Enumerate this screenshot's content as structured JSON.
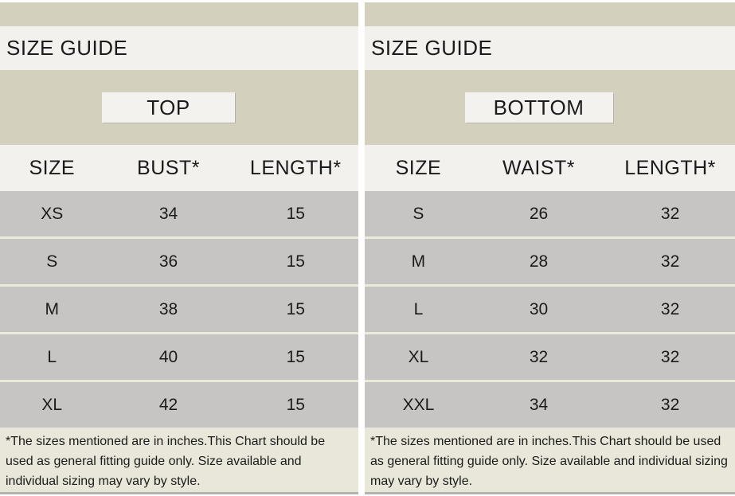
{
  "colors": {
    "band_khaki": "#d3d0bd",
    "light_row": "#f2f1ee",
    "data_row_gray": "#c6c5c3",
    "row_separator": "#eceadb",
    "footnote_bg": "#e9e7da",
    "text": "#1b1b1b"
  },
  "panels": [
    {
      "title": "SIZE GUIDE",
      "category_label": "TOP",
      "columns": [
        "SIZE",
        "BUST*",
        "LENGTH*"
      ],
      "rows": [
        [
          "XS",
          "34",
          "15"
        ],
        [
          "S",
          "36",
          "15"
        ],
        [
          "M",
          "38",
          "15"
        ],
        [
          "L",
          "40",
          "15"
        ],
        [
          "XL",
          "42",
          "15"
        ]
      ],
      "footnote": "*The sizes mentioned are in inches.This Chart should be used as general fitting guide only. Size available and individual sizing may vary by style."
    },
    {
      "title": "SIZE GUIDE",
      "category_label": "BOTTOM",
      "columns": [
        "SIZE",
        "WAIST*",
        "LENGTH*"
      ],
      "rows": [
        [
          "S",
          "26",
          "32"
        ],
        [
          "M",
          "28",
          "32"
        ],
        [
          "L",
          "30",
          "32"
        ],
        [
          "XL",
          "32",
          "32"
        ],
        [
          "XXL",
          "34",
          "32"
        ]
      ],
      "footnote": "*The sizes mentioned are in inches.This Chart should be used as general fitting guide only. Size available and individual sizing may vary by style."
    }
  ]
}
